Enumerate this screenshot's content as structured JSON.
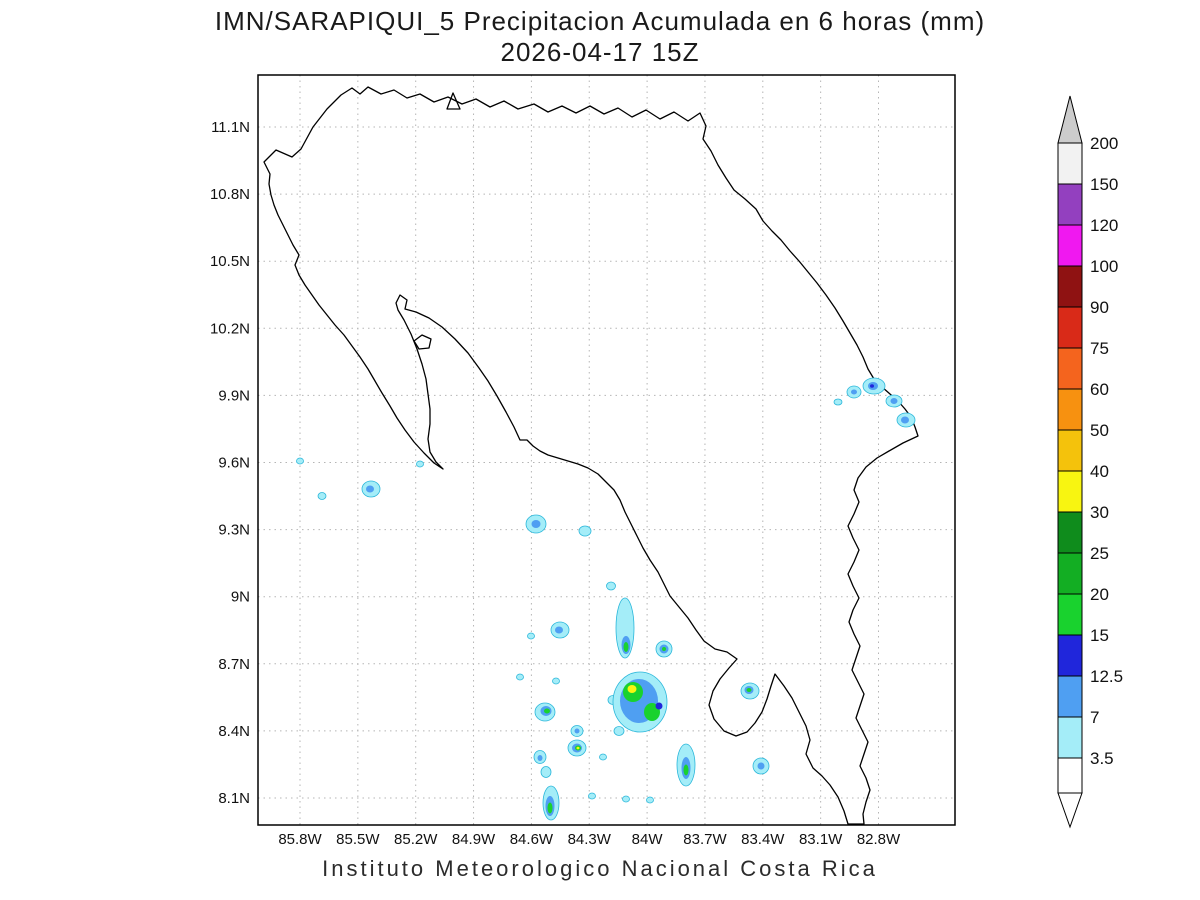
{
  "title": {
    "line1": "IMN/SARAPIQUI_5 Precipitacion Acumulada en 6 horas (mm)",
    "line2": "2026-04-17 15Z"
  },
  "caption": "Instituto Meteorologico Nacional Costa Rica",
  "chart_data": {
    "type": "heatmap",
    "subtype": "geographic-precipitation-shaded-contours",
    "title": "IMN/SARAPIQUI_5 Precipitacion Acumulada en 6 horas (mm)",
    "valid_time": "2026-04-17 15Z",
    "units": "mm",
    "accumulation_period": "6 horas",
    "region": "Costa Rica",
    "source": "Instituto Meteorologico Nacional Costa Rica",
    "lon_ticks": [
      "85.8W",
      "85.5W",
      "85.2W",
      "84.9W",
      "84.6W",
      "84.3W",
      "84W",
      "83.7W",
      "83.4W",
      "83.1W",
      "82.8W"
    ],
    "lat_ticks": [
      "11.1N",
      "10.8N",
      "10.5N",
      "10.2N",
      "9.9N",
      "9.6N",
      "9.3N",
      "9N",
      "8.7N",
      "8.4N",
      "8.1N"
    ],
    "lon_range_deg_west": [
      86.0,
      82.4
    ],
    "lat_range_deg_north": [
      8.0,
      11.3
    ],
    "grid": "dotted",
    "legend_position": "right",
    "colorbar": {
      "labels": [
        "200",
        "150",
        "120",
        "100",
        "90",
        "75",
        "60",
        "50",
        "40",
        "30",
        "25",
        "20",
        "15",
        "12.5",
        "7",
        "3.5"
      ],
      "segment_colors_top_to_bottom": [
        "#F2F2F2",
        "#9340BF",
        "#F018F0",
        "#8F1212",
        "#D92A18",
        "#F4641E",
        "#F79110",
        "#F4C20C",
        "#F8F511",
        "#0F8C1C",
        "#13AE23",
        "#19D22E",
        "#2026DB",
        "#4F9FF2",
        "#A4EDF8"
      ],
      "above_max_color": "#CCCCCC",
      "below_min_color": "#FFFFFF"
    },
    "palette": {
      "a": "#A4EDF8",
      "b": "#4F9FF2",
      "c": "#2026DB",
      "d": "#19D22E",
      "e": "#13AE23",
      "y": "#F8F511"
    },
    "palette_levels_mm": {
      "a": "3.5-7",
      "b": "7-12.5",
      "c": "12.5-15",
      "d": "15-20",
      "e": "20-25",
      "y": "30-40"
    },
    "cell_outline": "#2BB7DA",
    "cells": [
      [
        "a",
        838,
        402,
        4,
        3
      ],
      [
        "a",
        854,
        392,
        7,
        6
      ],
      [
        "b",
        854,
        392,
        3,
        2.5
      ],
      [
        "a",
        874,
        386,
        11,
        8
      ],
      [
        "b",
        873,
        386,
        5,
        4
      ],
      [
        "c",
        872,
        386,
        2,
        1.8
      ],
      [
        "a",
        894,
        401,
        8,
        6
      ],
      [
        "b",
        894,
        401,
        3.5,
        3
      ],
      [
        "a",
        906,
        420,
        9,
        7
      ],
      [
        "b",
        905,
        420,
        4,
        3.5
      ],
      [
        "a",
        300,
        461,
        3.5,
        3
      ],
      [
        "a",
        322,
        496,
        4,
        3.5
      ],
      [
        "a",
        371,
        489,
        9,
        8
      ],
      [
        "b",
        370,
        489,
        4,
        3.5
      ],
      [
        "a",
        420,
        464,
        3.5,
        3
      ],
      [
        "a",
        536,
        524,
        10,
        9
      ],
      [
        "b",
        536,
        524,
        4.5,
        4
      ],
      [
        "a",
        585,
        531,
        6,
        5
      ],
      [
        "a",
        611,
        586,
        4.5,
        4
      ],
      [
        "a",
        560,
        630,
        9,
        8
      ],
      [
        "b",
        559,
        630,
        4,
        3.5
      ],
      [
        "a",
        531,
        636,
        3.5,
        3
      ],
      [
        "a",
        625,
        628,
        9,
        30
      ],
      [
        "b",
        626,
        645,
        4.5,
        9
      ],
      [
        "d",
        626,
        647,
        2.5,
        5
      ],
      [
        "a",
        664,
        649,
        8,
        8
      ],
      [
        "b",
        664,
        649,
        4.5,
        4.5
      ],
      [
        "d",
        664,
        649,
        2,
        2
      ],
      [
        "a",
        520,
        677,
        3.5,
        3
      ],
      [
        "a",
        556,
        681,
        3.5,
        3
      ],
      [
        "a",
        613,
        700,
        5,
        4.5
      ],
      [
        "a",
        619,
        731,
        5,
        4.5
      ],
      [
        "a",
        640,
        702,
        27,
        30
      ],
      [
        "b",
        639,
        701,
        19,
        22
      ],
      [
        "d",
        633,
        692,
        10,
        10
      ],
      [
        "y",
        632,
        689,
        4.5,
        4
      ],
      [
        "d",
        652,
        712,
        8,
        9
      ],
      [
        "c",
        659,
        706,
        3.5,
        3.5
      ],
      [
        "a",
        545,
        712,
        10,
        9
      ],
      [
        "b",
        546,
        711,
        5.5,
        5
      ],
      [
        "d",
        547,
        711,
        3,
        2.5
      ],
      [
        "a",
        577,
        731,
        6,
        5.5
      ],
      [
        "b",
        577,
        731,
        2.5,
        2.5
      ],
      [
        "a",
        577,
        748,
        9,
        8
      ],
      [
        "b",
        577,
        748,
        5,
        4.5
      ],
      [
        "d",
        578,
        748,
        3,
        2.5
      ],
      [
        "y",
        578,
        748,
        1.5,
        1.3
      ],
      [
        "a",
        540,
        757,
        6,
        6.5
      ],
      [
        "b",
        540,
        758,
        2.5,
        3
      ],
      [
        "a",
        546,
        772,
        5,
        5.5
      ],
      [
        "a",
        750,
        691,
        9,
        8
      ],
      [
        "b",
        749,
        690,
        4.5,
        4
      ],
      [
        "d",
        749,
        690,
        2.5,
        2
      ],
      [
        "a",
        686,
        765,
        9,
        21
      ],
      [
        "b",
        686,
        768,
        4.5,
        11
      ],
      [
        "d",
        686,
        770,
        2.5,
        5.5
      ],
      [
        "a",
        761,
        766,
        8,
        8
      ],
      [
        "b",
        761,
        766,
        3.5,
        3.5
      ],
      [
        "a",
        603,
        757,
        3.5,
        3
      ],
      [
        "a",
        626,
        799,
        3.5,
        3
      ],
      [
        "a",
        650,
        800,
        3.5,
        3
      ],
      [
        "a",
        551,
        803,
        8,
        17
      ],
      [
        "b",
        550,
        806,
        4.5,
        10
      ],
      [
        "d",
        550,
        808,
        2.5,
        5.5
      ],
      [
        "a",
        592,
        796,
        3.5,
        3
      ]
    ],
    "map_outline_paths": [
      "M270,174 L264,162 L276,150 L292,157 L301,149 L313,127 L327,109 L341,95 L352,88 L360,94 L368,87 L381,94 L394,90 L407,98 L420,94 L434,102 L448,97 L462,104 L476,99 L490,107 L504,101 L518,109 L534,104 L548,112 L562,106 L576,113 L590,106 L604,114 L618,108 L632,117 L646,110 L660,119 L674,112 L688,121 L700,113 L706,126 L703,139 L711,151 L718,165 L726,178 L734,190 L745,199 L756,209 L763,221 L772,231 L781,240 L790,251 L799,261 L808,272 L817,283 L826,295 L835,308 L843,321 L850,333 L857,345 L863,357 L868,369 L874,379 L882,387 L890,394 L898,401 L905,409 L911,417 L915,427 L918,436 L903,443 L889,451 L877,458 L866,467 L858,478 L854,490 L859,502 L854,514 L848,526 L853,538 L859,550 L854,562 L848,574 L853,586 L859,598 L853,610 L849,622 L854,634 L860,646 L856,658 L852,670 L858,682 L864,694 L860,706 L856,718 L862,730 L868,742 L864,754 L860,766 L866,778 L870,790 L866,802 L863,814 L864,824 L848,824 L844,811 L838,797 L830,785 L822,776 L813,768 L806,754 L810,740 L806,726 L799,712 L792,698 L784,686 L775,674 L771,686 L767,699 L762,712 L755,723 L747,732 L736,736 L724,731 L714,719 L709,705 L713,691 L720,679 L729,668 L737,659 L727,652 L715,649 L704,641 L696,630 L688,618 L679,607 L670,596 L664,584 L658,572 L650,560 L643,548 L637,536 L631,524 L625,512 L620,500 L614,490 L606,482 L598,474 L588,468 L578,464 L568,461 L558,458 L548,455 L540,451 L533,446 L527,440 L520,440 L514,427 L506,412 L497,396 L488,381 L479,368 L468,353 L455,339 L442,327 L429,318 L416,312 L405,309 L407,300 L400,295 L396,303 L398,310 L404,320 L411,334 L417,349 L422,364 L426,379 L428,394 L430,409 L430,424 L428,439 L430,452 L436,462 L443,469 L434,463 L424,453 L414,442 L405,430 L397,418 L390,406 L382,393 L375,381 L368,369 L360,357 L352,346 L344,335 L335,325 L327,315 L319,305 L312,295 L305,285 L299,275 L295,265 L299,255 L293,245 L288,235 L283,225 L278,215 L274,205 L271,195 L269,184 Z",
      "M414,341 L422,335 L431,339 L429,348 L419,349 Z",
      "M447,109 L453,93 L460,109 Z"
    ]
  }
}
